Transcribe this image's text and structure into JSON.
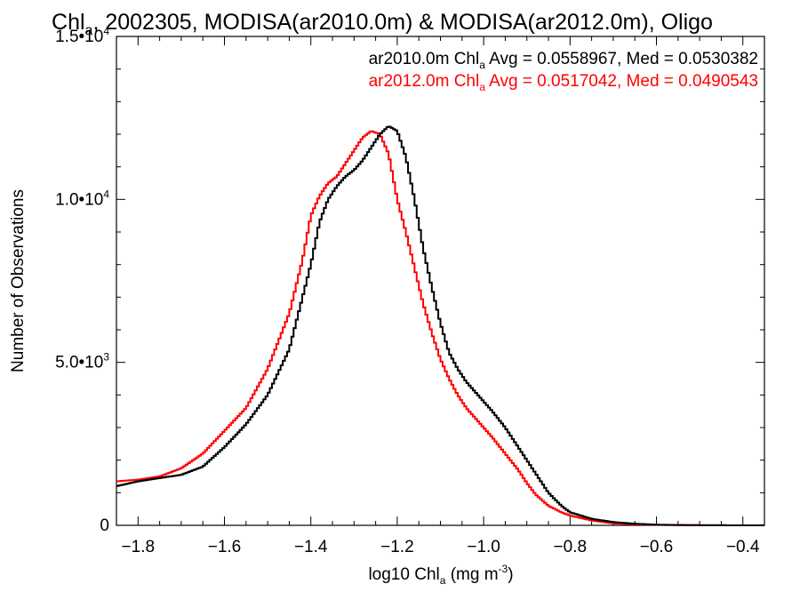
{
  "chart_data": {
    "type": "line",
    "title": {
      "pre": "Chl",
      "sub": "a",
      "post": ", 2002305, MODISA(ar2010.0m) & MODISA(ar2012.0m), Oligo"
    },
    "xlabel": {
      "pre": "log10 Chl",
      "sub": "a",
      "mid": " (mg m",
      "sup": "-3",
      "post": ")"
    },
    "ylabel": "Number of Observations",
    "xlim": [
      -1.85,
      -0.35
    ],
    "ylim": [
      0,
      15000
    ],
    "xticks": [
      -1.8,
      -1.6,
      -1.4,
      -1.2,
      -1.0,
      -0.8,
      -0.6,
      -0.4
    ],
    "xtick_labels": [
      "−1.8",
      "−1.6",
      "−1.4",
      "−1.2",
      "−1.0",
      "−0.8",
      "−0.6",
      "−0.4"
    ],
    "yticks": [
      0,
      5000,
      10000,
      15000
    ],
    "ytick_labels": [
      {
        "base": "0",
        "exp": ""
      },
      {
        "base": "5.0•10",
        "exp": "3"
      },
      {
        "base": "1.0•10",
        "exp": "4"
      },
      {
        "base": "1.5•10",
        "exp": "4"
      }
    ],
    "grid": false,
    "legend_position": "top-right",
    "series": [
      {
        "name": "ar2010.0m",
        "legend": {
          "pre": "ar2010.0m Chl",
          "sub": "a",
          "post": " Avg = 0.0558967, Med = 0.0530382"
        },
        "color": "#000000",
        "x": [
          -1.85,
          -1.8,
          -1.75,
          -1.7,
          -1.65,
          -1.6,
          -1.55,
          -1.5,
          -1.45,
          -1.4,
          -1.38,
          -1.36,
          -1.34,
          -1.32,
          -1.3,
          -1.28,
          -1.26,
          -1.24,
          -1.22,
          -1.2,
          -1.18,
          -1.16,
          -1.14,
          -1.12,
          -1.1,
          -1.08,
          -1.06,
          -1.04,
          -1.02,
          -1.0,
          -0.98,
          -0.95,
          -0.92,
          -0.9,
          -0.88,
          -0.85,
          -0.82,
          -0.8,
          -0.75,
          -0.7,
          -0.65,
          -0.6,
          -0.55,
          -0.5,
          -0.45,
          -0.4,
          -0.35
        ],
        "y": [
          1200,
          1350,
          1450,
          1550,
          1800,
          2400,
          3100,
          4000,
          5400,
          8000,
          9300,
          10000,
          10400,
          10700,
          10900,
          11200,
          11600,
          12000,
          12250,
          12100,
          11300,
          10000,
          8500,
          7300,
          6200,
          5300,
          4800,
          4400,
          4100,
          3800,
          3500,
          3000,
          2400,
          2000,
          1600,
          1000,
          600,
          400,
          200,
          100,
          50,
          20,
          10,
          5,
          2,
          1,
          0
        ]
      },
      {
        "name": "ar2012.0m",
        "legend": {
          "pre": "ar2012.0m Chl",
          "sub": "a",
          "post": " Avg = 0.0517042, Med = 0.0490543"
        },
        "color": "#ff0000",
        "x": [
          -1.85,
          -1.8,
          -1.75,
          -1.7,
          -1.65,
          -1.6,
          -1.55,
          -1.5,
          -1.45,
          -1.42,
          -1.4,
          -1.38,
          -1.36,
          -1.34,
          -1.32,
          -1.3,
          -1.28,
          -1.26,
          -1.24,
          -1.22,
          -1.2,
          -1.18,
          -1.16,
          -1.14,
          -1.12,
          -1.1,
          -1.08,
          -1.06,
          -1.04,
          -1.02,
          -1.0,
          -0.98,
          -0.95,
          -0.92,
          -0.9,
          -0.88,
          -0.85,
          -0.82,
          -0.8,
          -0.75,
          -0.7,
          -0.65,
          -0.6,
          -0.55,
          -0.5,
          -0.45,
          -0.4,
          -0.35
        ],
        "y": [
          1350,
          1400,
          1500,
          1750,
          2200,
          2900,
          3600,
          4800,
          6500,
          8100,
          9500,
          10100,
          10500,
          10700,
          11100,
          11500,
          11900,
          12100,
          12000,
          11400,
          10000,
          9000,
          7900,
          6800,
          5900,
          5100,
          4500,
          4000,
          3600,
          3300,
          3000,
          2700,
          2200,
          1700,
          1300,
          950,
          600,
          400,
          300,
          150,
          60,
          30,
          15,
          8,
          4,
          2,
          1,
          0
        ]
      }
    ]
  }
}
